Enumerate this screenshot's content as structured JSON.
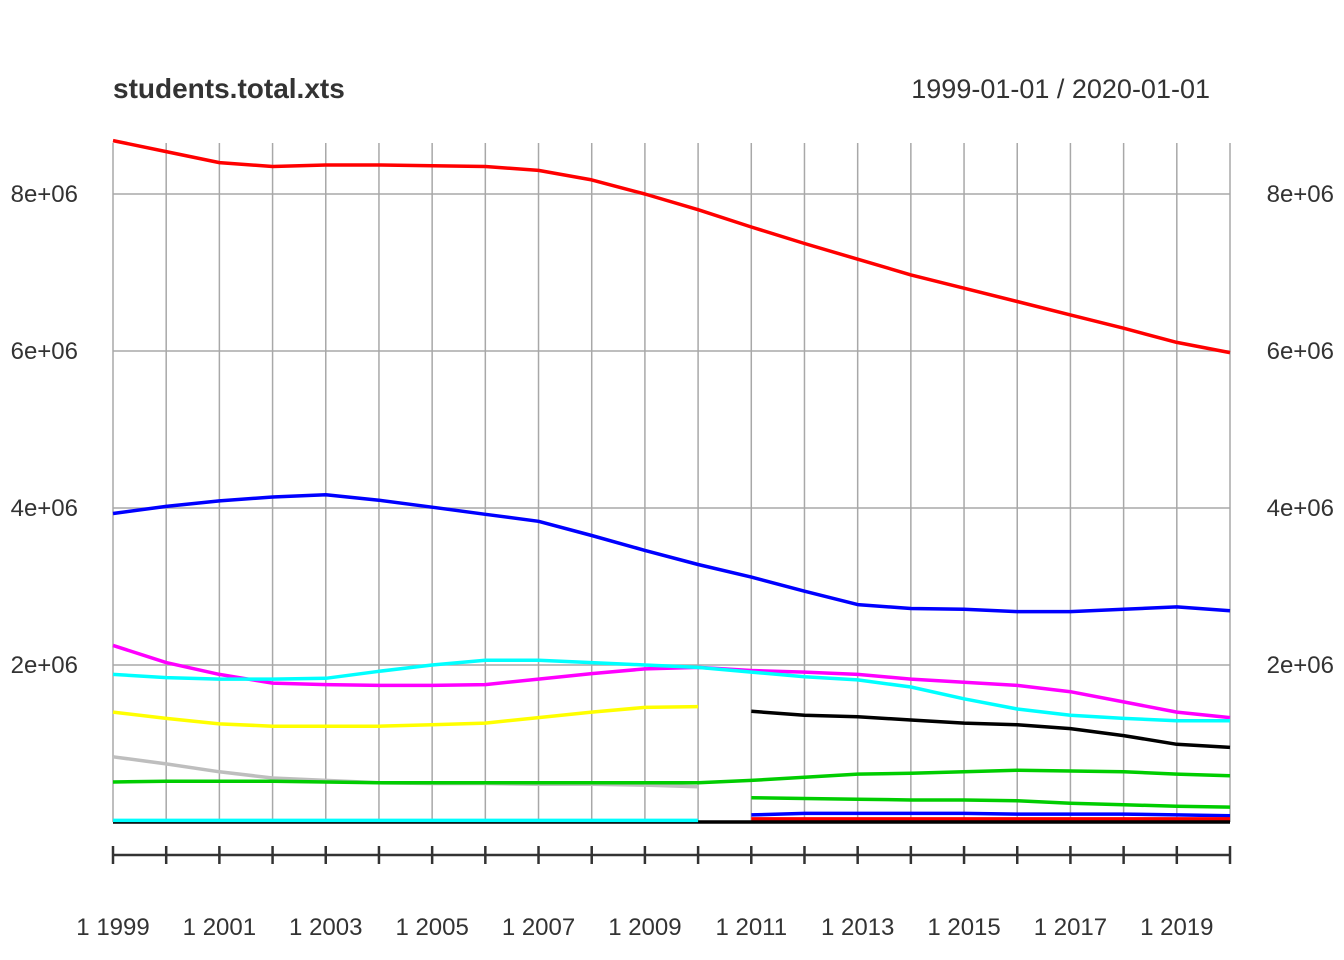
{
  "chart_data": {
    "type": "line",
    "title": "students.total.xts",
    "date_range": "1999-01-01 / 2020-01-01",
    "xlabel": "",
    "ylabel": "",
    "x_ticks": [
      "1 1999",
      "1 2001",
      "1 2003",
      "1 2005",
      "1 2007",
      "1 2009",
      "1 2011",
      "1 2013",
      "1 2015",
      "1 2017",
      "1 2019"
    ],
    "y_ticks": [
      "2e+06",
      "4e+06",
      "6e+06",
      "8e+06"
    ],
    "ylim": [
      -400000,
      8700000
    ],
    "grid": true,
    "legend": "none",
    "x": [
      1999,
      2000,
      2001,
      2002,
      2003,
      2004,
      2005,
      2006,
      2007,
      2008,
      2009,
      2010,
      2011,
      2012,
      2013,
      2014,
      2015,
      2016,
      2017,
      2018,
      2019,
      2020
    ],
    "series": [
      {
        "color": "#ff0000",
        "values": [
          8680000,
          8540000,
          8400000,
          8350000,
          8370000,
          8370000,
          8360000,
          8350000,
          8300000,
          8180000,
          8000000,
          7800000,
          7580000,
          7370000,
          7170000,
          6970000,
          6800000,
          6630000,
          6460000,
          6290000,
          6110000,
          5980000
        ]
      },
      {
        "color": "#0000ff",
        "values": [
          3930000,
          4020000,
          4090000,
          4140000,
          4170000,
          4100000,
          4010000,
          3920000,
          3830000,
          3650000,
          3460000,
          3280000,
          3120000,
          2940000,
          2770000,
          2720000,
          2710000,
          2680000,
          2680000,
          2710000,
          2740000,
          2690000
        ]
      },
      {
        "color": "#ff00ff",
        "values": [
          2250000,
          2030000,
          1880000,
          1770000,
          1750000,
          1740000,
          1740000,
          1750000,
          1820000,
          1890000,
          1950000,
          1970000,
          1930000,
          1910000,
          1880000,
          1820000,
          1780000,
          1740000,
          1660000,
          1530000,
          1400000,
          1330000
        ]
      },
      {
        "color": "#00ffff",
        "values": [
          1880000,
          1840000,
          1820000,
          1820000,
          1830000,
          1920000,
          2000000,
          2060000,
          2060000,
          2030000,
          2000000,
          1970000,
          1910000,
          1850000,
          1810000,
          1720000,
          1570000,
          1440000,
          1360000,
          1320000,
          1290000,
          1290000
        ]
      },
      {
        "color": "#ffff00",
        "values": [
          1400000,
          1320000,
          1250000,
          1220000,
          1220000,
          1220000,
          1240000,
          1260000,
          1330000,
          1400000,
          1460000,
          1470000,
          null,
          null,
          null,
          null,
          null,
          null,
          null,
          null,
          null,
          null
        ]
      },
      {
        "color": "#000000",
        "values": [
          null,
          null,
          null,
          null,
          null,
          null,
          null,
          null,
          null,
          null,
          null,
          null,
          1410000,
          1360000,
          1340000,
          1300000,
          1260000,
          1240000,
          1190000,
          1100000,
          990000,
          950000
        ]
      },
      {
        "color": "#bebebe",
        "values": [
          830000,
          740000,
          640000,
          560000,
          530000,
          500000,
          490000,
          490000,
          480000,
          480000,
          470000,
          450000,
          null,
          null,
          null,
          null,
          null,
          null,
          null,
          null,
          null,
          null
        ]
      },
      {
        "color": "#00cd00",
        "values": [
          510000,
          520000,
          520000,
          520000,
          510000,
          500000,
          500000,
          500000,
          500000,
          500000,
          500000,
          500000,
          530000,
          570000,
          610000,
          620000,
          640000,
          660000,
          650000,
          640000,
          610000,
          590000
        ]
      },
      {
        "color": "#00cd00",
        "values": [
          null,
          null,
          null,
          null,
          null,
          null,
          null,
          null,
          null,
          null,
          null,
          null,
          310000,
          300000,
          290000,
          280000,
          280000,
          270000,
          240000,
          220000,
          200000,
          190000
        ]
      },
      {
        "color": "#0000ff",
        "values": [
          null,
          null,
          null,
          null,
          null,
          null,
          null,
          null,
          null,
          null,
          null,
          null,
          90000,
          110000,
          110000,
          110000,
          110000,
          100000,
          100000,
          100000,
          90000,
          80000
        ]
      },
      {
        "color": "#ff0000",
        "values": [
          null,
          null,
          null,
          null,
          null,
          null,
          null,
          null,
          null,
          null,
          null,
          null,
          40000,
          40000,
          40000,
          40000,
          40000,
          40000,
          40000,
          40000,
          40000,
          40000
        ]
      },
      {
        "color": "#000000",
        "values": [
          0,
          0,
          0,
          0,
          0,
          0,
          0,
          0,
          0,
          0,
          0,
          0,
          0,
          0,
          0,
          0,
          0,
          0,
          0,
          0,
          0,
          0
        ]
      },
      {
        "color": "#00ffff",
        "values": [
          20000,
          20000,
          20000,
          20000,
          20000,
          20000,
          20000,
          20000,
          20000,
          20000,
          20000,
          20000,
          null,
          null,
          null,
          null,
          null,
          null,
          null,
          null,
          null,
          null
        ]
      }
    ]
  }
}
